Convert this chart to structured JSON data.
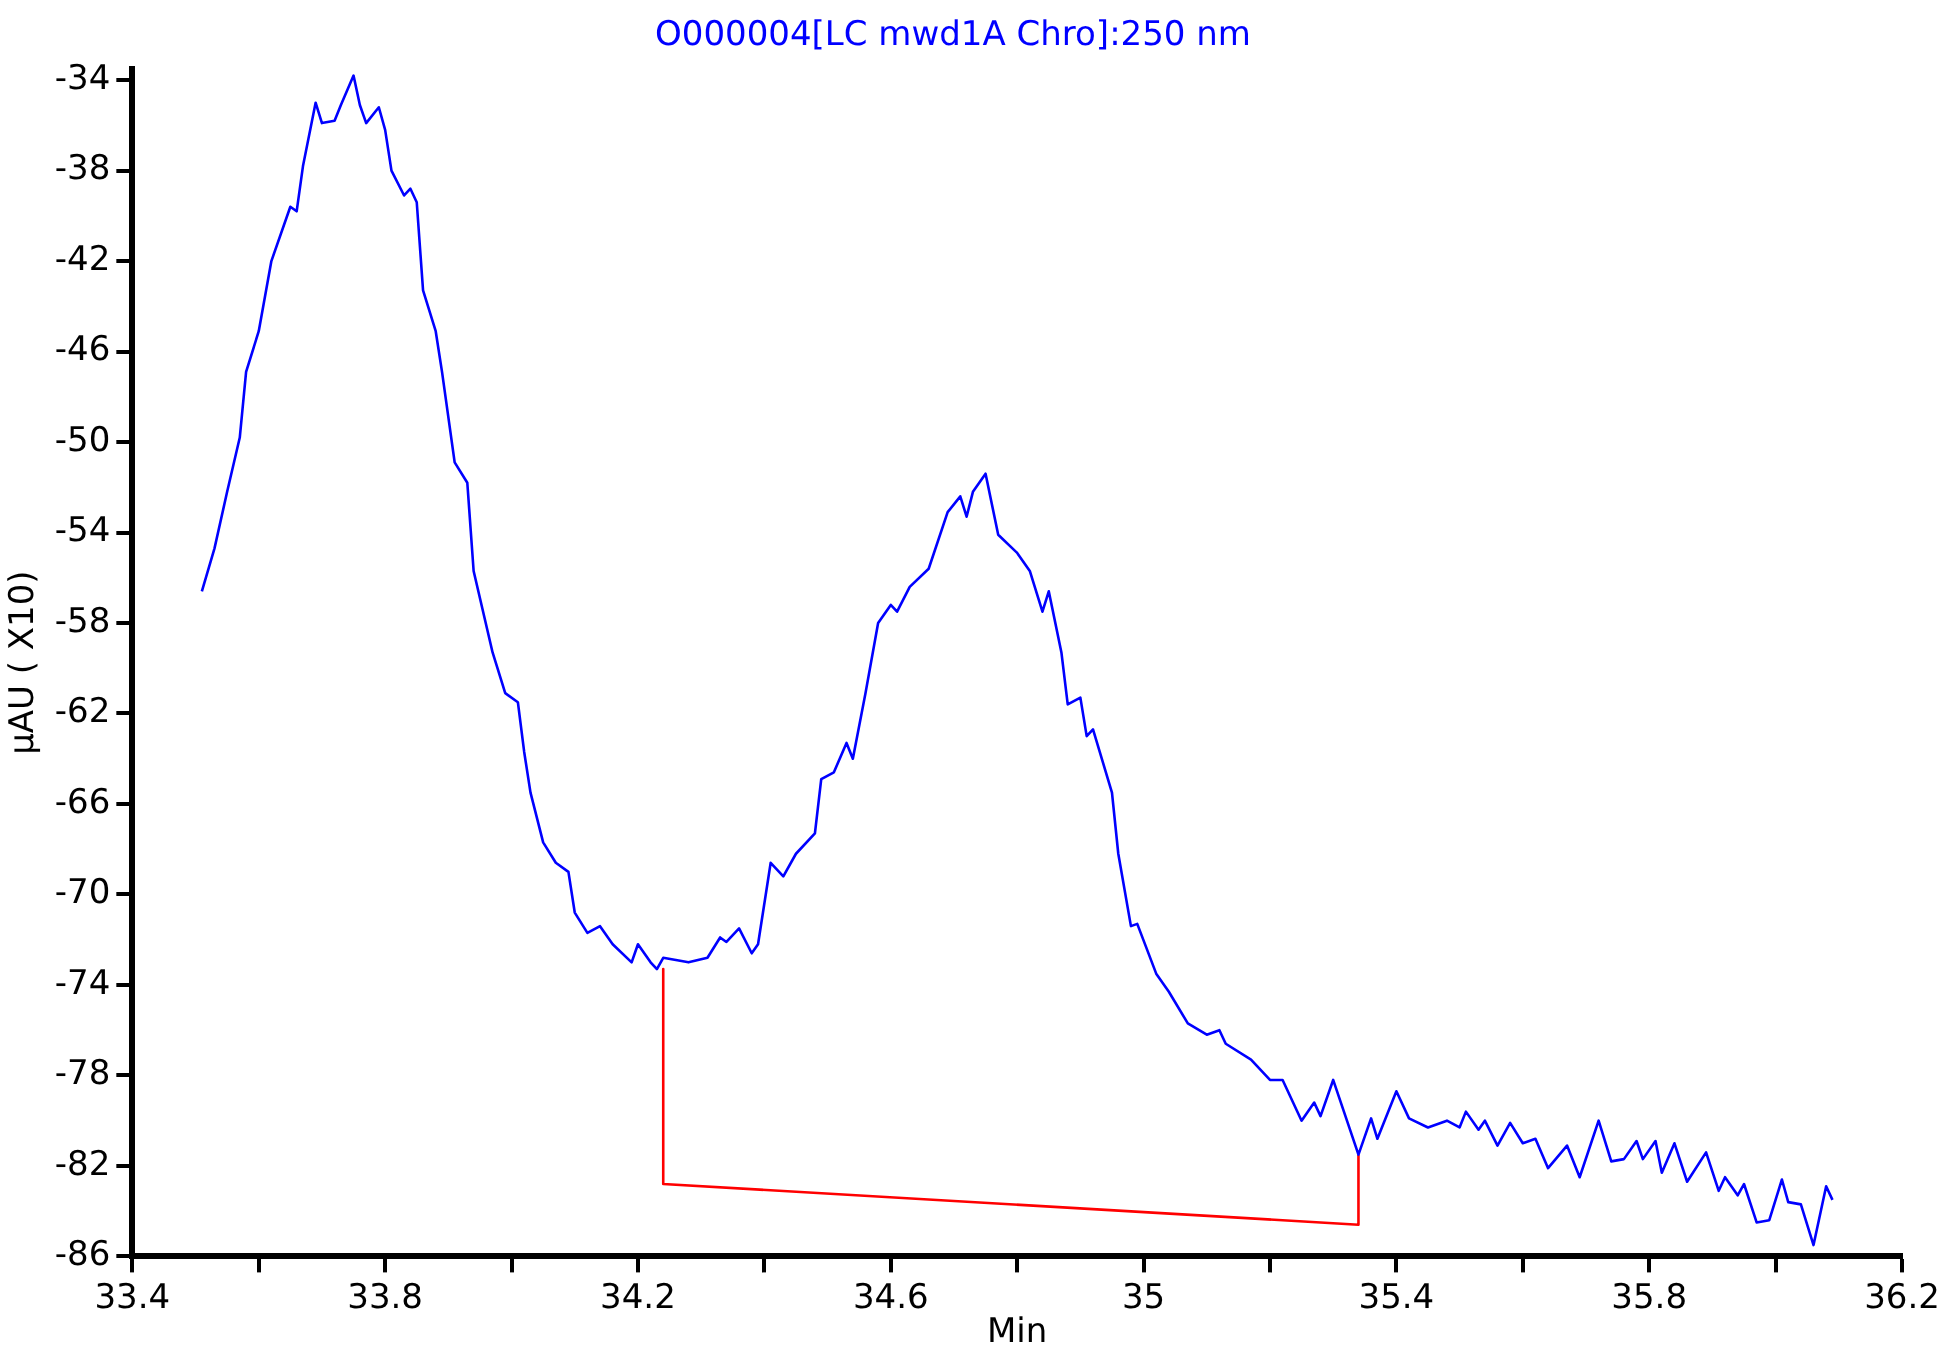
{
  "chart_data": {
    "type": "line",
    "title": "O000004[LC mwd1A Chro]:250 nm",
    "xlabel": "Min",
    "ylabel": "µAU ( X10)",
    "xlim": [
      33.4,
      36.2
    ],
    "ylim": [
      -86,
      -33.5
    ],
    "xticks": [
      33.4,
      {
        "value": 33.6,
        "label": null
      },
      33.8,
      {
        "value": 34.0,
        "label": null
      },
      34.2,
      {
        "value": 34.4,
        "label": null
      },
      34.6,
      {
        "value": 34.8,
        "label": null
      },
      35.0,
      {
        "value": 35.2,
        "label": null
      },
      35.4,
      {
        "value": 35.6,
        "label": null
      },
      35.8,
      {
        "value": 36.0,
        "label": null
      },
      36.2
    ],
    "yticks": [
      -34,
      -38,
      -42,
      -46,
      -50,
      -54,
      -58,
      -62,
      -66,
      -70,
      -74,
      -78,
      -82,
      -86
    ],
    "grid": false,
    "legend": false,
    "marker": "none",
    "line_style": "solid",
    "series": [
      {
        "color": "#0000ff",
        "x": [
          33.51,
          33.53,
          33.55,
          33.57,
          33.58,
          33.6,
          33.62,
          33.65,
          33.66,
          33.67,
          33.69,
          33.7,
          33.72,
          33.73,
          33.75,
          33.76,
          33.77,
          33.79,
          33.8,
          33.81,
          33.83,
          33.84,
          33.85,
          33.86,
          33.88,
          33.89,
          33.91,
          33.93,
          33.94,
          33.97,
          33.99,
          34.01,
          34.02,
          34.03,
          34.05,
          34.07,
          34.09,
          34.1,
          34.12,
          34.14,
          34.16,
          34.19,
          34.2,
          34.22,
          34.23,
          34.24,
          34.28,
          34.31,
          34.33,
          34.34,
          34.36,
          34.38,
          34.39,
          34.41,
          34.43,
          34.45,
          34.48,
          34.49,
          34.51,
          34.53,
          34.54,
          34.56,
          34.58,
          34.6,
          34.61,
          34.63,
          34.66,
          34.69,
          34.71,
          34.72,
          34.73,
          34.75,
          34.77,
          34.8,
          34.82,
          34.84,
          34.85,
          34.87,
          34.88,
          34.9,
          34.91,
          34.92,
          34.95,
          34.96,
          34.98,
          34.99,
          35.02,
          35.04,
          35.07,
          35.1,
          35.12,
          35.13,
          35.17,
          35.2,
          35.22,
          35.25,
          35.27,
          35.28,
          35.3,
          35.34,
          35.36,
          35.37,
          35.4,
          35.42,
          35.45,
          35.48,
          35.5,
          35.51,
          35.53,
          35.54,
          35.56,
          35.58,
          35.6,
          35.62,
          35.64,
          35.67,
          35.69,
          35.72,
          35.74,
          35.76,
          35.78,
          35.79,
          35.81,
          35.82,
          35.84,
          35.86,
          35.89,
          35.91,
          35.92,
          35.94,
          35.95,
          35.97,
          35.99,
          36.01,
          36.02,
          36.04,
          36.06,
          36.08,
          36.09
        ],
        "values": [
          -56.6,
          -54.7,
          -52.2,
          -49.8,
          -46.9,
          -45.1,
          -42.0,
          -39.6,
          -39.8,
          -37.8,
          -35.0,
          -35.9,
          -35.8,
          -35.1,
          -33.8,
          -35.1,
          -35.9,
          -35.2,
          -36.2,
          -38.0,
          -39.1,
          -38.8,
          -39.4,
          -43.3,
          -45.1,
          -46.9,
          -50.9,
          -51.8,
          -55.7,
          -59.3,
          -61.1,
          -61.5,
          -63.7,
          -65.5,
          -67.7,
          -68.6,
          -69.0,
          -70.8,
          -71.7,
          -71.4,
          -72.2,
          -73.0,
          -72.2,
          -73.0,
          -73.3,
          -72.8,
          -73.0,
          -72.8,
          -71.9,
          -72.1,
          -71.5,
          -72.6,
          -72.2,
          -68.6,
          -69.2,
          -68.2,
          -67.3,
          -64.9,
          -64.6,
          -63.3,
          -64.0,
          -61.1,
          -58.0,
          -57.2,
          -57.5,
          -56.4,
          -55.6,
          -53.1,
          -52.4,
          -53.3,
          -52.2,
          -51.4,
          -54.1,
          -54.9,
          -55.7,
          -57.5,
          -56.6,
          -59.3,
          -61.6,
          -61.3,
          -63.0,
          -62.7,
          -65.5,
          -68.2,
          -71.4,
          -71.3,
          -73.5,
          -74.3,
          -75.7,
          -76.2,
          -76.0,
          -76.6,
          -77.3,
          -78.2,
          -78.2,
          -80.0,
          -79.2,
          -79.8,
          -78.2,
          -81.5,
          -79.9,
          -80.8,
          -78.7,
          -79.9,
          -80.3,
          -80.0,
          -80.3,
          -79.6,
          -80.4,
          -80.0,
          -81.1,
          -80.1,
          -81.0,
          -80.8,
          -82.1,
          -81.1,
          -82.5,
          -80.0,
          -81.8,
          -81.7,
          -80.9,
          -81.7,
          -80.9,
          -82.3,
          -81.0,
          -82.7,
          -81.4,
          -83.1,
          -82.5,
          -83.3,
          -82.8,
          -84.5,
          -84.4,
          -82.6,
          -83.6,
          -83.7,
          -85.5,
          -82.9,
          -83.5
        ]
      },
      {
        "color": "#ff0000",
        "x": [
          34.24,
          34.24,
          35.34,
          35.34
        ],
        "values": [
          -73.3,
          -82.8,
          -84.6,
          -81.5
        ]
      }
    ]
  }
}
